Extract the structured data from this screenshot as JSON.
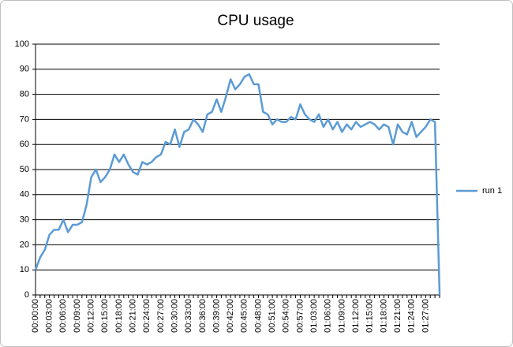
{
  "chart_data": {
    "type": "line",
    "title": "CPU usage",
    "categories": [
      "00:00:00",
      null,
      null,
      "00:03:00",
      null,
      null,
      "00:06:00",
      null,
      null,
      "00:09:00",
      null,
      null,
      "00:12:00",
      null,
      null,
      "00:15:00",
      null,
      null,
      "00:18:00",
      null,
      null,
      "00:21:00",
      null,
      null,
      "00:24:00",
      null,
      null,
      "00:27:00",
      null,
      null,
      "00:30:00",
      null,
      null,
      "00:33:00",
      null,
      null,
      "00:36:00",
      null,
      null,
      "00:39:00",
      null,
      null,
      "00:42:00",
      null,
      null,
      "00:45:00",
      null,
      null,
      "00:48:00",
      null,
      null,
      "00:51:00",
      null,
      null,
      "00:54:00",
      null,
      null,
      "00:57:00",
      null,
      null,
      "01:03:00",
      null,
      null,
      "01:06:00",
      null,
      null,
      "01:09:00",
      null,
      null,
      "01:12:00",
      null,
      null,
      "01:15:00",
      null,
      null,
      "01:18:00",
      null,
      null,
      "01:21:00",
      null,
      null,
      "01:24:00",
      null,
      null,
      "01:27:00",
      null,
      null,
      null
    ],
    "series": [
      {
        "name": "run 1",
        "color": "#5b9bd5",
        "values": [
          10,
          15,
          18,
          24,
          26,
          26,
          30,
          25,
          28,
          28,
          29,
          36,
          47,
          50,
          45,
          47,
          50,
          56,
          53,
          56,
          52,
          49,
          48,
          53,
          52,
          53,
          55,
          56,
          61,
          60,
          66,
          59,
          65,
          66,
          70,
          68,
          65,
          72,
          73,
          78,
          73,
          79,
          86,
          82,
          84,
          87,
          88,
          84,
          84,
          73,
          72,
          68,
          70,
          69,
          69,
          71,
          70,
          76,
          72,
          70,
          69,
          72,
          67,
          70,
          66,
          69,
          65,
          68,
          66,
          69,
          67,
          68,
          69,
          68,
          66,
          68,
          67,
          60,
          68,
          65,
          64,
          69,
          63,
          65,
          67,
          70,
          69,
          0
        ]
      }
    ],
    "ylim": [
      0,
      100
    ],
    "yticks": [
      0,
      10,
      20,
      30,
      40,
      50,
      60,
      70,
      80,
      90,
      100
    ],
    "grid": true,
    "legend": "right"
  }
}
